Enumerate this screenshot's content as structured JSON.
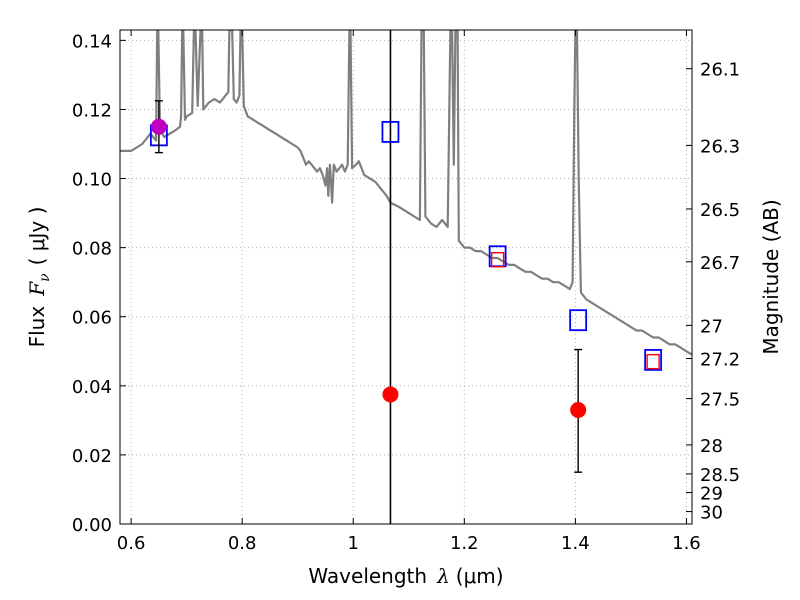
{
  "chart_data": {
    "type": "line",
    "xlabel_text": "Wavelength",
    "xlabel_sym": "λ",
    "xlabel_unit": "(μm)",
    "ylabel_text": "Flux",
    "ylabel_sym": "F",
    "ylabel_sub": "ν",
    "ylabel_unit": "( μJy )",
    "y2label": "Magnitude (AB)",
    "xlim": [
      0.58,
      1.61
    ],
    "ylim": [
      0.0,
      0.143
    ],
    "xticks": [
      0.6,
      0.8,
      1.0,
      1.2,
      1.4,
      1.6
    ],
    "xtick_labels": [
      "0.6",
      "0.8",
      "1",
      "1.2",
      "1.4",
      "1.6"
    ],
    "yticks": [
      0.0,
      0.02,
      0.04,
      0.06,
      0.08,
      0.1,
      0.12,
      0.14
    ],
    "ytick_labels": [
      "0.00",
      "0.02",
      "0.04",
      "0.06",
      "0.08",
      "0.10",
      "0.12",
      "0.14"
    ],
    "mag_ticks": [
      {
        "label": "26.1",
        "flux": 0.1318
      },
      {
        "label": "26.3",
        "flux": 0.1096
      },
      {
        "label": "26.5",
        "flux": 0.0912
      },
      {
        "label": "26.7",
        "flux": 0.0759
      },
      {
        "label": "27",
        "flux": 0.0575
      },
      {
        "label": "27.2",
        "flux": 0.0479
      },
      {
        "label": "27.5",
        "flux": 0.0363
      },
      {
        "label": "28",
        "flux": 0.0229
      },
      {
        "label": "28.5",
        "flux": 0.0145
      },
      {
        "label": "29",
        "flux": 0.0091
      },
      {
        "label": "30",
        "flux": 0.0036
      }
    ],
    "grid": true,
    "vertical_line_x": 1.067,
    "spectrum": [
      [
        0.58,
        0.108
      ],
      [
        0.6,
        0.108
      ],
      [
        0.62,
        0.11
      ],
      [
        0.635,
        0.113
      ],
      [
        0.64,
        0.112
      ],
      [
        0.645,
        0.111
      ],
      [
        0.647,
        0.143
      ],
      [
        0.649,
        0.143
      ],
      [
        0.652,
        0.114
      ],
      [
        0.66,
        0.112
      ],
      [
        0.67,
        0.113
      ],
      [
        0.68,
        0.114
      ],
      [
        0.688,
        0.115
      ],
      [
        0.69,
        0.118
      ],
      [
        0.692,
        0.143
      ],
      [
        0.694,
        0.143
      ],
      [
        0.697,
        0.117
      ],
      [
        0.7,
        0.118
      ],
      [
        0.71,
        0.119
      ],
      [
        0.713,
        0.143
      ],
      [
        0.716,
        0.143
      ],
      [
        0.72,
        0.121
      ],
      [
        0.725,
        0.143
      ],
      [
        0.728,
        0.143
      ],
      [
        0.73,
        0.12
      ],
      [
        0.74,
        0.122
      ],
      [
        0.75,
        0.123
      ],
      [
        0.76,
        0.122
      ],
      [
        0.77,
        0.124
      ],
      [
        0.775,
        0.125
      ],
      [
        0.777,
        0.143
      ],
      [
        0.782,
        0.143
      ],
      [
        0.785,
        0.123
      ],
      [
        0.79,
        0.122
      ],
      [
        0.795,
        0.124
      ],
      [
        0.797,
        0.143
      ],
      [
        0.8,
        0.143
      ],
      [
        0.803,
        0.121
      ],
      [
        0.81,
        0.118
      ],
      [
        0.82,
        0.117
      ],
      [
        0.83,
        0.116
      ],
      [
        0.84,
        0.115
      ],
      [
        0.85,
        0.114
      ],
      [
        0.86,
        0.113
      ],
      [
        0.87,
        0.112
      ],
      [
        0.88,
        0.111
      ],
      [
        0.89,
        0.11
      ],
      [
        0.9,
        0.109
      ],
      [
        0.905,
        0.108
      ],
      [
        0.91,
        0.106
      ],
      [
        0.915,
        0.104
      ],
      [
        0.92,
        0.105
      ],
      [
        0.925,
        0.104
      ],
      [
        0.93,
        0.103
      ],
      [
        0.935,
        0.102
      ],
      [
        0.94,
        0.103
      ],
      [
        0.945,
        0.101
      ],
      [
        0.95,
        0.098
      ],
      [
        0.953,
        0.103
      ],
      [
        0.955,
        0.095
      ],
      [
        0.958,
        0.104
      ],
      [
        0.96,
        0.099
      ],
      [
        0.962,
        0.093
      ],
      [
        0.965,
        0.104
      ],
      [
        0.97,
        0.102
      ],
      [
        0.975,
        0.103
      ],
      [
        0.98,
        0.104
      ],
      [
        0.985,
        0.102
      ],
      [
        0.99,
        0.104
      ],
      [
        0.993,
        0.143
      ],
      [
        0.995,
        0.143
      ],
      [
        0.998,
        0.103
      ],
      [
        1.005,
        0.104
      ],
      [
        1.01,
        0.105
      ],
      [
        1.015,
        0.103
      ],
      [
        1.02,
        0.101
      ],
      [
        1.03,
        0.1
      ],
      [
        1.04,
        0.099
      ],
      [
        1.05,
        0.097
      ],
      [
        1.06,
        0.095
      ],
      [
        1.067,
        0.093
      ],
      [
        1.08,
        0.092
      ],
      [
        1.09,
        0.091
      ],
      [
        1.1,
        0.09
      ],
      [
        1.11,
        0.089
      ],
      [
        1.12,
        0.088
      ],
      [
        1.123,
        0.143
      ],
      [
        1.127,
        0.143
      ],
      [
        1.13,
        0.089
      ],
      [
        1.14,
        0.087
      ],
      [
        1.15,
        0.086
      ],
      [
        1.16,
        0.088
      ],
      [
        1.17,
        0.086
      ],
      [
        1.175,
        0.143
      ],
      [
        1.178,
        0.143
      ],
      [
        1.181,
        0.104
      ],
      [
        1.184,
        0.143
      ],
      [
        1.188,
        0.143
      ],
      [
        1.19,
        0.082
      ],
      [
        1.2,
        0.08
      ],
      [
        1.21,
        0.08
      ],
      [
        1.22,
        0.079
      ],
      [
        1.23,
        0.079
      ],
      [
        1.24,
        0.078
      ],
      [
        1.25,
        0.077
      ],
      [
        1.26,
        0.077
      ],
      [
        1.27,
        0.076
      ],
      [
        1.28,
        0.075
      ],
      [
        1.29,
        0.075
      ],
      [
        1.3,
        0.074
      ],
      [
        1.31,
        0.073
      ],
      [
        1.32,
        0.073
      ],
      [
        1.33,
        0.072
      ],
      [
        1.34,
        0.071
      ],
      [
        1.35,
        0.071
      ],
      [
        1.36,
        0.07
      ],
      [
        1.37,
        0.07
      ],
      [
        1.38,
        0.069
      ],
      [
        1.39,
        0.068
      ],
      [
        1.395,
        0.07
      ],
      [
        1.398,
        0.12
      ],
      [
        1.4,
        0.143
      ],
      [
        1.403,
        0.143
      ],
      [
        1.406,
        0.1
      ],
      [
        1.41,
        0.067
      ],
      [
        1.42,
        0.065
      ],
      [
        1.43,
        0.064
      ],
      [
        1.44,
        0.063
      ],
      [
        1.45,
        0.062
      ],
      [
        1.46,
        0.061
      ],
      [
        1.47,
        0.06
      ],
      [
        1.48,
        0.059
      ],
      [
        1.49,
        0.058
      ],
      [
        1.5,
        0.057
      ],
      [
        1.51,
        0.056
      ],
      [
        1.52,
        0.056
      ],
      [
        1.53,
        0.055
      ],
      [
        1.54,
        0.054
      ],
      [
        1.55,
        0.054
      ],
      [
        1.56,
        0.053
      ],
      [
        1.57,
        0.052
      ],
      [
        1.58,
        0.052
      ],
      [
        1.59,
        0.051
      ],
      [
        1.6,
        0.05
      ],
      [
        1.61,
        0.049
      ]
    ],
    "model_boxes": [
      {
        "x": 0.65,
        "y": 0.1125
      },
      {
        "x": 1.067,
        "y": 0.1135
      },
      {
        "x": 1.26,
        "y": 0.0775
      },
      {
        "x": 1.405,
        "y": 0.059
      },
      {
        "x": 1.54,
        "y": 0.0475
      }
    ],
    "obs_boxes": [
      {
        "x": 1.26,
        "y": 0.0765
      },
      {
        "x": 1.54,
        "y": 0.047
      }
    ],
    "points": [
      {
        "x": 0.65,
        "y": 0.115,
        "color": "#bf00bf"
      },
      {
        "x": 1.067,
        "y": 0.0375,
        "color": "#ff0000"
      },
      {
        "x": 1.405,
        "y": 0.033,
        "color": "#ff0000"
      }
    ],
    "errorbars": [
      {
        "x": 0.65,
        "lo": 0.1075,
        "hi": 0.1225
      },
      {
        "x": 1.405,
        "lo": 0.015,
        "hi": 0.0505
      }
    ],
    "colors": {
      "spectrum": "#7f7f7f",
      "model_box": "#0000ff",
      "obs_box": "#ff0000",
      "vline": "#000000",
      "grid": "#b0b0b0"
    }
  }
}
